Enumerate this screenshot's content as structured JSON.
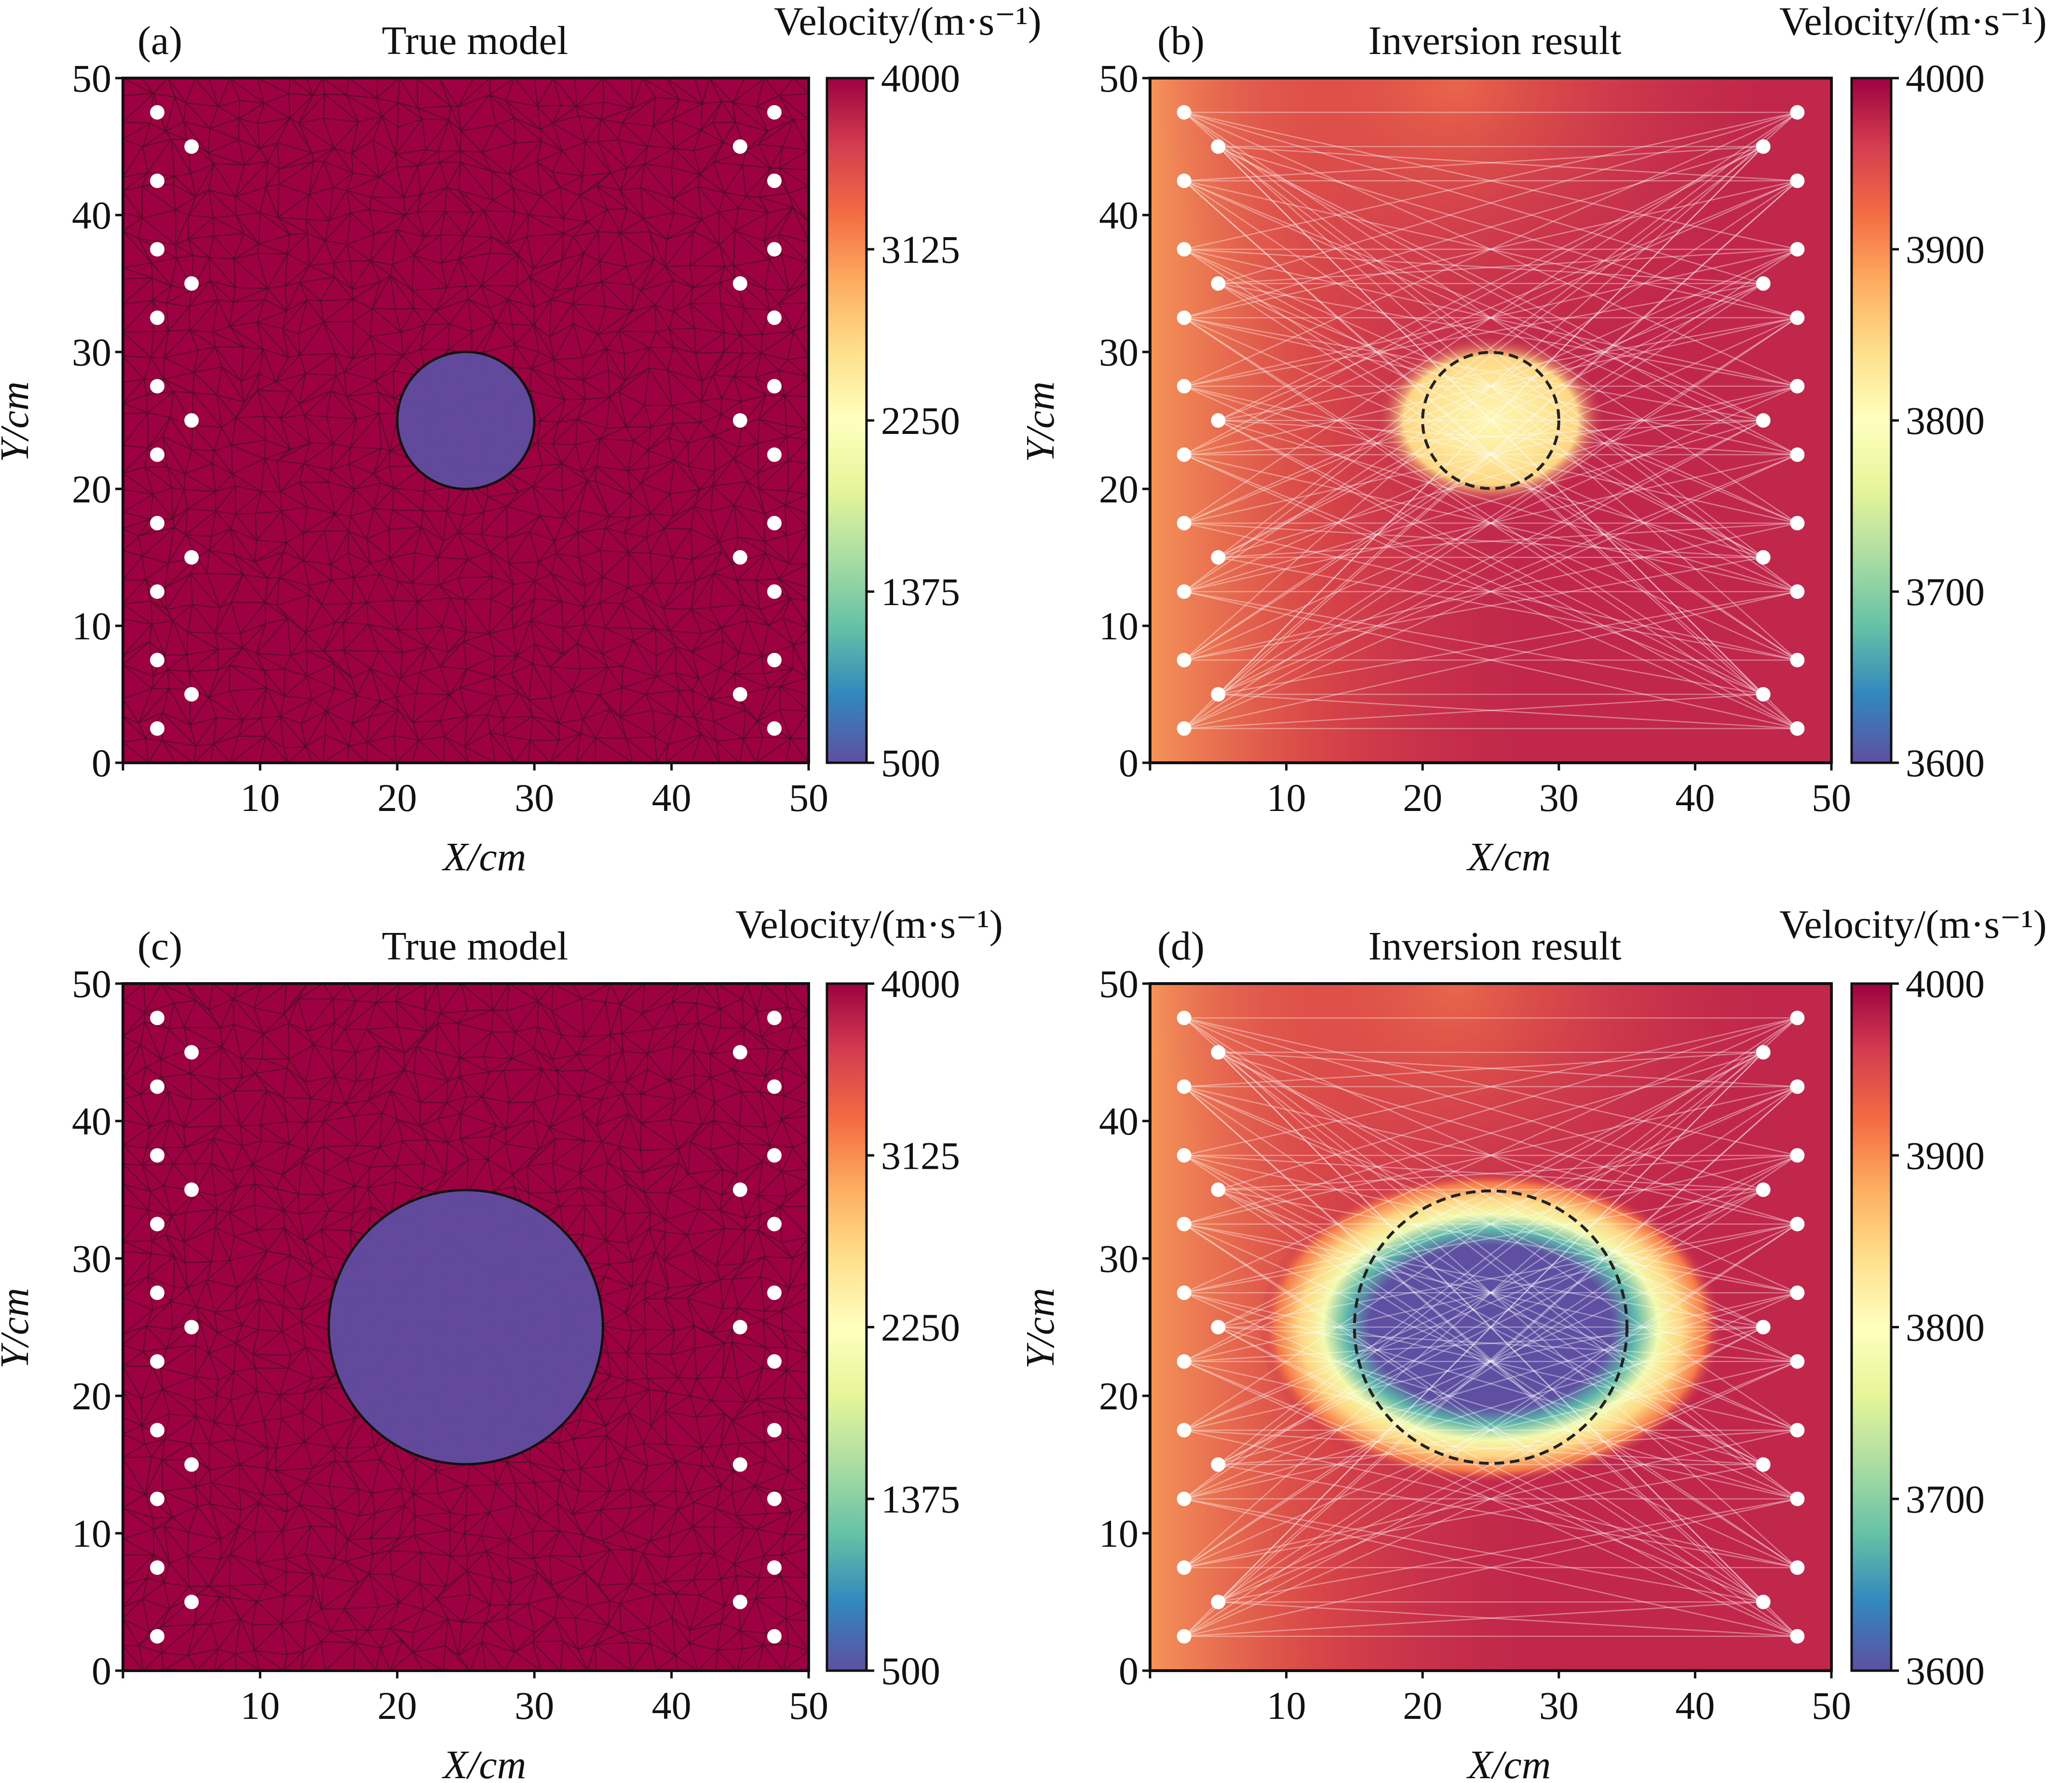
{
  "chart_data": [
    {
      "type": "heatmap",
      "panel_label": "(a)",
      "title": "True model",
      "colorbar_title": "Velocity/(m·s⁻¹)",
      "colorbar_ticks": [
        500,
        1375,
        2250,
        3125,
        4000
      ],
      "clim": [
        500,
        4000
      ],
      "xlabel": "X/cm",
      "ylabel": "Y/cm",
      "xlim": [
        0,
        50
      ],
      "ylim": [
        0,
        50
      ],
      "xticks": [
        10,
        20,
        30,
        40,
        50
      ],
      "yticks": [
        0,
        10,
        20,
        30,
        40,
        50
      ],
      "background_value": 4000,
      "anomaly": {
        "shape": "circle",
        "center_x": 25,
        "center_y": 25,
        "radius": 5,
        "value": 500
      },
      "mesh": "triangular",
      "ray_paths": false,
      "sensors_left_x": [
        2.5,
        5
      ],
      "sensors_right_x": [
        45,
        47.5
      ],
      "sensor_y_outer": [
        2.5,
        7.5,
        12.5,
        17.5,
        22.5,
        27.5,
        32.5,
        37.5,
        42.5,
        47.5
      ],
      "sensor_y_inner": [
        5,
        15,
        25,
        35,
        45
      ]
    },
    {
      "type": "heatmap",
      "panel_label": "(b)",
      "title": "Inversion result",
      "colorbar_title": "Velocity/(m·s⁻¹)",
      "colorbar_ticks": [
        3600,
        3700,
        3800,
        3900,
        4000
      ],
      "clim": [
        3600,
        4000
      ],
      "xlabel": "X/cm",
      "ylabel": "Y/cm",
      "xlim": [
        0,
        50
      ],
      "ylim": [
        0,
        50
      ],
      "xticks": [
        10,
        20,
        30,
        40,
        50
      ],
      "yticks": [
        0,
        10,
        20,
        30,
        40,
        50
      ],
      "background_value": 3975,
      "anomaly": {
        "shape": "circle",
        "center_x": 25,
        "center_y": 25,
        "radius": 5,
        "min_value": 3810
      },
      "true_outline": {
        "center_x": 25,
        "center_y": 25,
        "radius": 5
      },
      "ray_paths": true,
      "sensors_left_x": [
        2.5,
        5
      ],
      "sensors_right_x": [
        45,
        47.5
      ],
      "sensor_y_outer": [
        2.5,
        7.5,
        12.5,
        17.5,
        22.5,
        27.5,
        32.5,
        37.5,
        42.5,
        47.5
      ],
      "sensor_y_inner": [
        5,
        15,
        25,
        35,
        45
      ]
    },
    {
      "type": "heatmap",
      "panel_label": "(c)",
      "title": "True model",
      "colorbar_title": "Velocity/(m·s⁻¹)",
      "colorbar_ticks": [
        500,
        1375,
        2250,
        3125,
        4000
      ],
      "clim": [
        500,
        4000
      ],
      "xlabel": "X/cm",
      "ylabel": "Y/cm",
      "xlim": [
        0,
        50
      ],
      "ylim": [
        0,
        50
      ],
      "xticks": [
        10,
        20,
        30,
        40,
        50
      ],
      "yticks": [
        0,
        10,
        20,
        30,
        40,
        50
      ],
      "background_value": 4000,
      "anomaly": {
        "shape": "circle",
        "center_x": 25,
        "center_y": 25,
        "radius": 10,
        "value": 500
      },
      "mesh": "triangular",
      "ray_paths": false,
      "sensors_left_x": [
        2.5,
        5
      ],
      "sensors_right_x": [
        45,
        47.5
      ],
      "sensor_y_outer": [
        2.5,
        7.5,
        12.5,
        17.5,
        22.5,
        27.5,
        32.5,
        37.5,
        42.5,
        47.5
      ],
      "sensor_y_inner": [
        5,
        15,
        25,
        35,
        45
      ]
    },
    {
      "type": "heatmap",
      "panel_label": "(d)",
      "title": "Inversion result",
      "colorbar_title": "Velocity/(m·s⁻¹)",
      "colorbar_ticks": [
        3600,
        3700,
        3800,
        3900,
        4000
      ],
      "clim": [
        3600,
        4000
      ],
      "xlabel": "X/cm",
      "ylabel": "Y/cm",
      "xlim": [
        0,
        50
      ],
      "ylim": [
        0,
        50
      ],
      "xticks": [
        10,
        20,
        30,
        40,
        50
      ],
      "yticks": [
        0,
        10,
        20,
        30,
        40,
        50
      ],
      "background_value": 3975,
      "anomaly": {
        "shape": "ellipse",
        "center_x": 25,
        "center_y": 25,
        "radius_x": 9,
        "radius_y": 6,
        "min_value": 3600
      },
      "true_outline": {
        "center_x": 25,
        "center_y": 25,
        "radius": 10
      },
      "ray_paths": true,
      "sensors_left_x": [
        2.5,
        5
      ],
      "sensors_right_x": [
        45,
        47.5
      ],
      "sensor_y_outer": [
        2.5,
        7.5,
        12.5,
        17.5,
        22.5,
        27.5,
        32.5,
        37.5,
        42.5,
        47.5
      ],
      "sensor_y_inner": [
        5,
        15,
        25,
        35,
        45
      ]
    }
  ],
  "colormap": [
    "#5e4fa2",
    "#3288bd",
    "#66c2a5",
    "#abdda4",
    "#e6f598",
    "#ffffbf",
    "#fee08b",
    "#fdae61",
    "#f46d43",
    "#d53e4f",
    "#9e0142"
  ]
}
